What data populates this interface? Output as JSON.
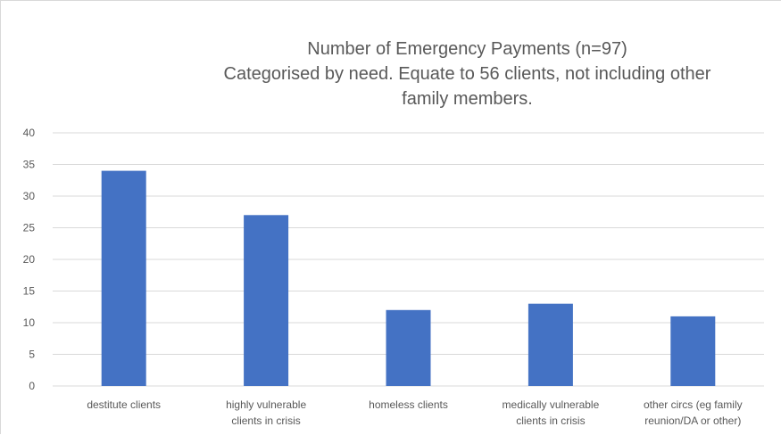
{
  "chart_data": {
    "type": "bar",
    "title": "Number of Emergency Payments (n=97)",
    "subtitle": [
      "Categorised by need.  Equate to 56 clients, not including other",
      "family members."
    ],
    "categories": [
      "destitute clients",
      "highly vulnerable clients in crisis",
      "homeless clients",
      "medically vulnerable clients in crisis",
      "other circs (eg family reunion/DA or other)"
    ],
    "category_lines": [
      [
        "destitute clients"
      ],
      [
        "highly vulnerable",
        "clients in crisis"
      ],
      [
        "homeless clients"
      ],
      [
        "medically vulnerable",
        "clients in crisis"
      ],
      [
        "other circs (eg family",
        "reunion/DA or other)"
      ]
    ],
    "values": [
      34,
      27,
      12,
      13,
      11
    ],
    "ylim": [
      0,
      40
    ],
    "yticks": [
      0,
      5,
      10,
      15,
      20,
      25,
      30,
      35,
      40
    ],
    "grid": true,
    "legend": "none",
    "bar_color": "#4472c4",
    "grid_color": "#d9d9d9"
  }
}
